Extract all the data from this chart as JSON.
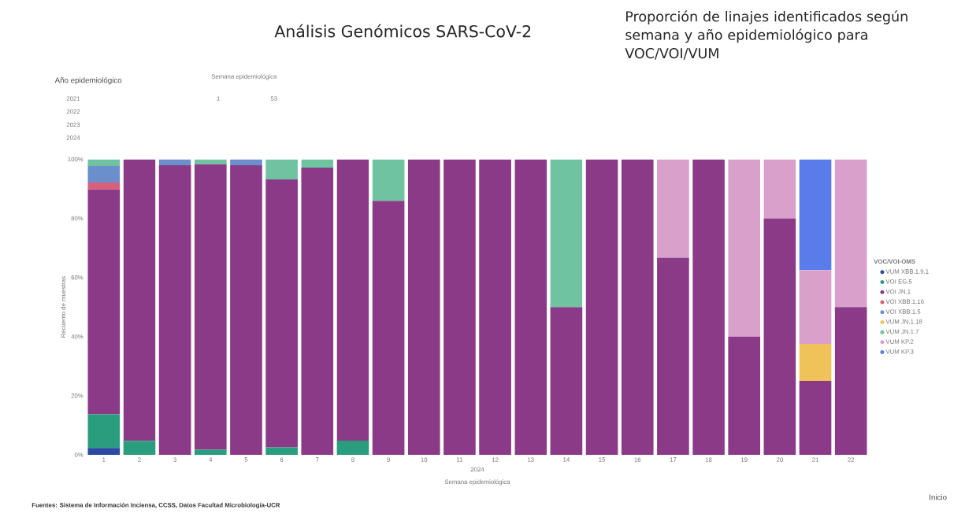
{
  "chart_data": {
    "type": "bar",
    "stacked": true,
    "title": "Análisis Genómicos SARS-CoV-2",
    "subtitle": "Proporción de linajes identificados según semana y año epidemiológico para VOC/VOI/VUM",
    "xlabel": "Semana epidemiológica",
    "ylabel": "Recuento de muestras",
    "legend_title": "VOC/VOI-OMS",
    "legend": "right",
    "annotations": [
      "Año epidemiológico",
      "2021",
      "2022",
      "2023",
      "2024",
      "Semana epidemiológica",
      "1",
      "53",
      "2024",
      "Fuentes: Sistema de Información Inciensa, CCSS, Datos Facultad Microbiología-UCR",
      "Inicio"
    ],
    "categories": [
      "1",
      "2",
      "3",
      "4",
      "5",
      "6",
      "7",
      "8",
      "9",
      "10",
      "11",
      "12",
      "13",
      "14",
      "15",
      "16",
      "17",
      "18",
      "19",
      "20",
      "21",
      "22"
    ],
    "ylim": [
      0,
      100
    ],
    "yticks": [
      {
        "value": 0,
        "label": "0%"
      },
      {
        "value": 20,
        "label": "20%"
      },
      {
        "value": 40,
        "label": "40%"
      },
      {
        "value": 60,
        "label": "60%"
      },
      {
        "value": 80,
        "label": "80%"
      },
      {
        "value": 100,
        "label": "100%"
      }
    ],
    "series": [
      {
        "name": "VUM XBB.1.9.1",
        "color": "#2b4aa0",
        "values": [
          2.3,
          null,
          null,
          null,
          null,
          null,
          null,
          null,
          null,
          null,
          null,
          null,
          null,
          null,
          null,
          null,
          null,
          null,
          null,
          null,
          null,
          null
        ]
      },
      {
        "name": "VOI EG.5",
        "color": "#2a9d7f",
        "values": [
          11.4,
          4.7,
          null,
          1.7,
          null,
          2.5,
          null,
          4.8,
          null,
          null,
          null,
          null,
          null,
          null,
          null,
          null,
          null,
          null,
          null,
          null,
          null,
          null
        ]
      },
      {
        "name": "VOI JN.1",
        "color": "#8b3a87",
        "values": [
          76.1,
          95.3,
          98,
          96.6,
          98,
          90.7,
          97.2,
          95.2,
          85.9,
          100,
          100,
          100,
          100,
          50,
          100,
          100,
          66.7,
          100,
          40,
          80,
          25,
          50
        ]
      },
      {
        "name": "VOI XBB.1.16",
        "color": "#d9607a",
        "values": [
          2.3,
          null,
          null,
          null,
          null,
          null,
          null,
          null,
          null,
          null,
          null,
          null,
          null,
          null,
          null,
          null,
          null,
          null,
          null,
          null,
          null,
          null
        ]
      },
      {
        "name": "VOI XBB.1.5",
        "color": "#6a8fcc",
        "values": [
          5.6,
          null,
          2,
          null,
          2,
          null,
          null,
          null,
          null,
          null,
          null,
          null,
          null,
          null,
          null,
          null,
          null,
          null,
          null,
          null,
          null,
          null
        ]
      },
      {
        "name": "VUM JN.1.18",
        "color": "#f0c35a",
        "values": [
          null,
          null,
          null,
          null,
          null,
          null,
          null,
          null,
          null,
          null,
          null,
          null,
          null,
          null,
          null,
          null,
          null,
          null,
          null,
          null,
          12.5,
          null
        ]
      },
      {
        "name": "VUM JN.1.7",
        "color": "#6fc3a0",
        "values": [
          2.3,
          null,
          null,
          1.7,
          null,
          6.8,
          2.8,
          null,
          14.1,
          null,
          null,
          null,
          null,
          50,
          null,
          null,
          null,
          null,
          null,
          null,
          null,
          null
        ]
      },
      {
        "name": "VUM KP.2",
        "color": "#d9a0cc",
        "values": [
          null,
          null,
          null,
          null,
          null,
          null,
          null,
          null,
          null,
          null,
          null,
          null,
          null,
          null,
          null,
          null,
          33.3,
          null,
          60,
          20,
          25,
          50
        ]
      },
      {
        "name": "VUM KP.3",
        "color": "#5a7bea",
        "values": [
          null,
          null,
          null,
          null,
          null,
          null,
          null,
          null,
          null,
          null,
          null,
          null,
          null,
          null,
          null,
          null,
          null,
          null,
          null,
          null,
          37.5,
          null
        ]
      }
    ]
  }
}
